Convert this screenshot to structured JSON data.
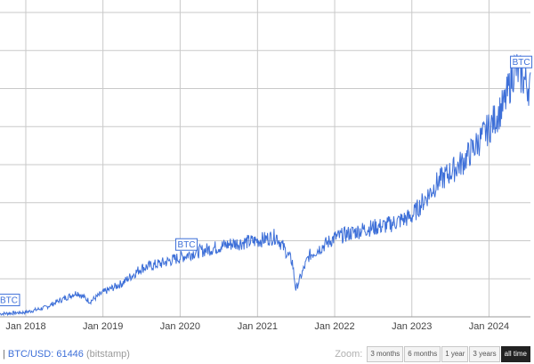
{
  "footer": {
    "separator": "|",
    "pair": "BTC/USD:",
    "price": "61446",
    "source": "(bitstamp)",
    "zoom_label": "Zoom:",
    "zoom_options": [
      "3 months",
      "6 months",
      "1 year",
      "3 years",
      "all time"
    ],
    "zoom_selected": "all time"
  },
  "chart_data": {
    "type": "line",
    "title": "",
    "xlabel": "",
    "ylabel": "",
    "x_tick_labels": [
      "Jan 2018",
      "Jan 2019",
      "Jan 2020",
      "Jan 2021",
      "Jan 2022",
      "Jan 2023",
      "Jan 2024"
    ],
    "x_range": [
      "2017-09-01",
      "2024-07-15"
    ],
    "y_tick_labels": [],
    "grid": true,
    "line_color": "#3d6fd8",
    "series": [
      {
        "values": [
          {
            "x": "2017-09-01",
            "y": 0.01
          },
          {
            "x": "2018-01-01",
            "y": 0.015
          },
          {
            "x": "2018-04-01",
            "y": 0.03
          },
          {
            "x": "2018-07-01",
            "y": 0.06
          },
          {
            "x": "2018-09-01",
            "y": 0.08
          },
          {
            "x": "2018-11-01",
            "y": 0.05
          },
          {
            "x": "2019-01-01",
            "y": 0.08
          },
          {
            "x": "2019-04-01",
            "y": 0.11
          },
          {
            "x": "2019-07-01",
            "y": 0.16
          },
          {
            "x": "2019-10-01",
            "y": 0.175
          },
          {
            "x": "2020-01-01",
            "y": 0.195
          },
          {
            "x": "2020-03-01",
            "y": 0.21
          },
          {
            "x": "2020-06-01",
            "y": 0.225
          },
          {
            "x": "2020-09-01",
            "y": 0.24
          },
          {
            "x": "2021-01-01",
            "y": 0.25
          },
          {
            "x": "2021-04-01",
            "y": 0.265
          },
          {
            "x": "2021-06-15",
            "y": 0.18
          },
          {
            "x": "2021-07-01",
            "y": 0.09
          },
          {
            "x": "2021-09-01",
            "y": 0.2
          },
          {
            "x": "2022-01-01",
            "y": 0.26
          },
          {
            "x": "2022-06-01",
            "y": 0.29
          },
          {
            "x": "2022-09-01",
            "y": 0.3
          },
          {
            "x": "2023-01-01",
            "y": 0.33
          },
          {
            "x": "2023-05-01",
            "y": 0.44
          },
          {
            "x": "2023-09-01",
            "y": 0.51
          },
          {
            "x": "2024-01-01",
            "y": 0.62
          },
          {
            "x": "2024-03-15",
            "y": 0.7
          },
          {
            "x": "2024-05-01",
            "y": 0.82
          },
          {
            "x": "2024-07-15",
            "y": 0.75
          }
        ]
      }
    ],
    "annotations": [
      {
        "text": "BTC",
        "x": "2017-09-01"
      },
      {
        "text": "BTC",
        "x": "2019-12-20"
      },
      {
        "text": "BTC",
        "x": "2024-04-20"
      }
    ]
  }
}
